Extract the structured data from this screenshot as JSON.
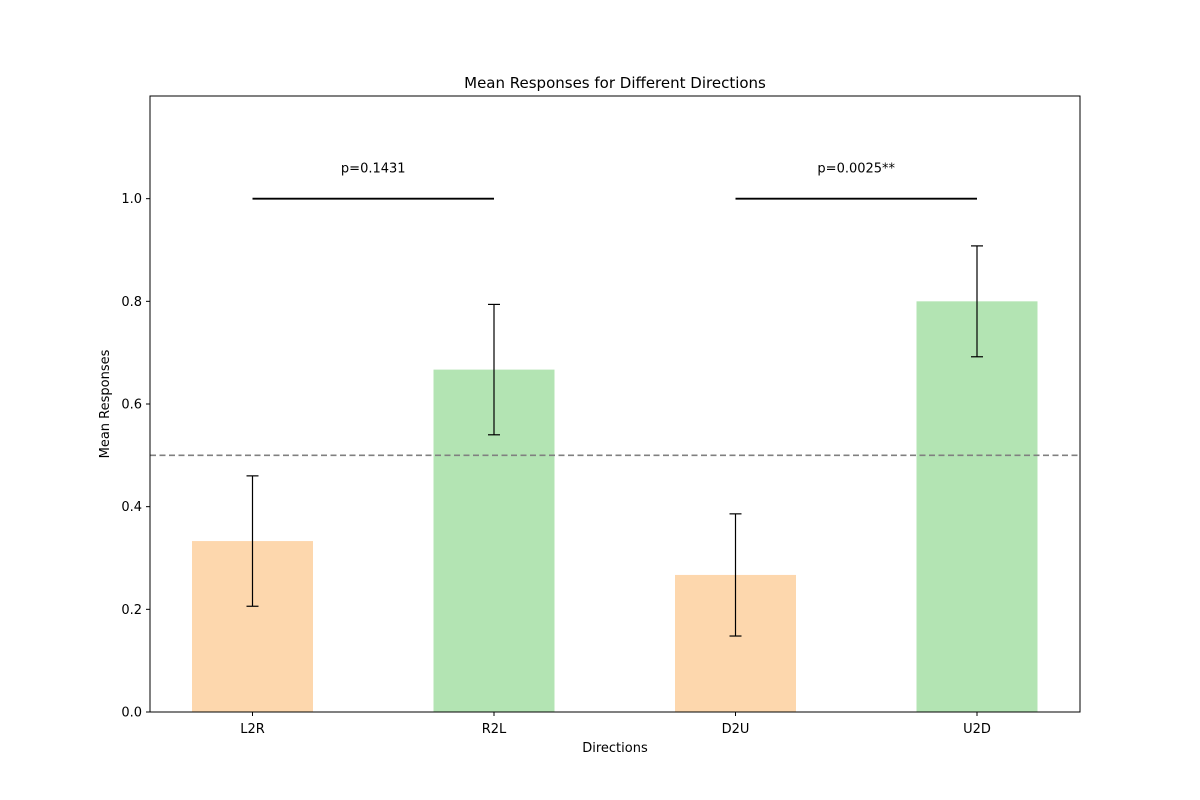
{
  "chart_data": {
    "type": "bar",
    "title": "Mean Responses for Different Directions",
    "xlabel": "Directions",
    "ylabel": "Mean Responses",
    "categories": [
      "L2R",
      "R2L",
      "D2U",
      "U2D"
    ],
    "values": [
      0.333,
      0.667,
      0.267,
      0.8
    ],
    "errors": [
      0.127,
      0.127,
      0.119,
      0.108
    ],
    "bar_colors": [
      "#fdd7ad",
      "#b3e4b3",
      "#fdd7ad",
      "#b3e4b3"
    ],
    "ylim": [
      0,
      1.2
    ],
    "yticks": [
      "0.0",
      "0.2",
      "0.4",
      "0.6",
      "0.8",
      "1.0"
    ],
    "reference_line": {
      "value": 0.5,
      "style": "dashed",
      "color": "#808080"
    },
    "comparisons": [
      {
        "from": 0,
        "to": 1,
        "y": 1.0,
        "label": "p=0.1431"
      },
      {
        "from": 2,
        "to": 3,
        "y": 1.0,
        "label": "p=0.0025**"
      }
    ],
    "grid": false
  }
}
